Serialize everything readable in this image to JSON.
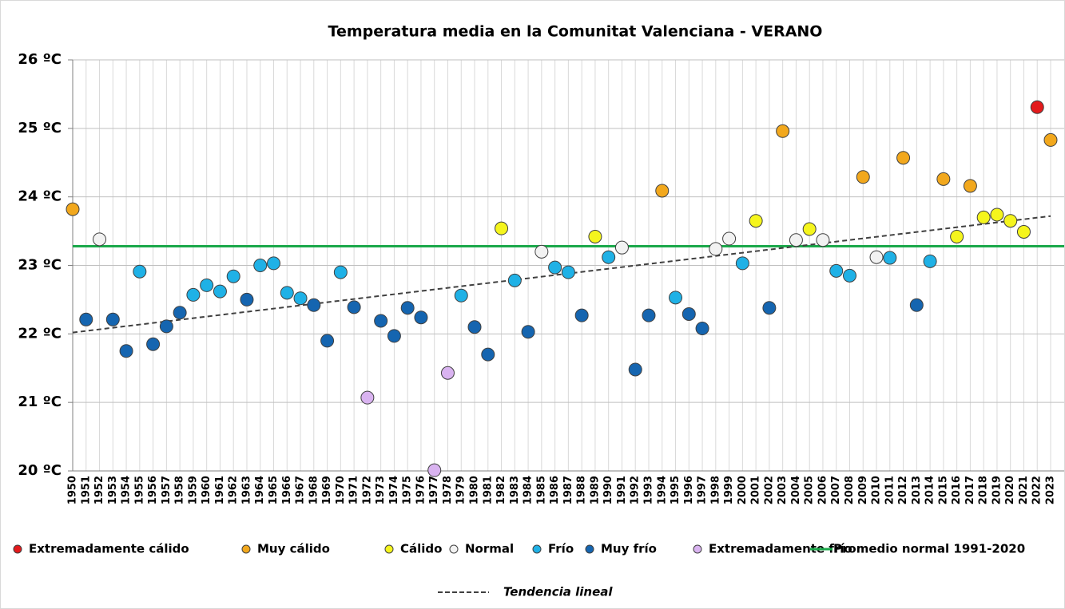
{
  "chart_data": {
    "type": "scatter",
    "title": "Temperatura media en la Comunitat Valenciana - VERANO",
    "xlim": [
      1950,
      2023
    ],
    "xticks": [
      1950,
      1951,
      1952,
      1953,
      1954,
      1955,
      1956,
      1957,
      1958,
      1959,
      1960,
      1961,
      1962,
      1963,
      1964,
      1965,
      1966,
      1967,
      1968,
      1969,
      1970,
      1971,
      1972,
      1973,
      1974,
      1975,
      1976,
      1977,
      1978,
      1979,
      1980,
      1981,
      1982,
      1983,
      1984,
      1985,
      1986,
      1987,
      1988,
      1989,
      1990,
      1991,
      1992,
      1993,
      1994,
      1995,
      1996,
      1997,
      1998,
      1999,
      2000,
      2001,
      2002,
      2003,
      2004,
      2005,
      2006,
      2007,
      2008,
      2009,
      2010,
      2011,
      2012,
      2013,
      2014,
      2015,
      2016,
      2017,
      2018,
      2019,
      2020,
      2021,
      2022,
      2023
    ],
    "ylim": [
      20,
      26
    ],
    "yticks": [
      {
        "value": 20,
        "label": "20 ºC"
      },
      {
        "value": 21,
        "label": "21 ºC"
      },
      {
        "value": 22,
        "label": "22 ºC"
      },
      {
        "value": 23,
        "label": "23 ºC"
      },
      {
        "value": 24,
        "label": "24 ºC"
      },
      {
        "value": 25,
        "label": "25 ºC"
      },
      {
        "value": 26,
        "label": "26 ºC"
      }
    ],
    "grid": true,
    "series": [
      {
        "name": "Extremadamente cálido",
        "color": "#e31a1c",
        "x": [
          2022
        ],
        "values": [
          25.31
        ]
      },
      {
        "name": "Muy cálido",
        "color": "#f2a81d",
        "x": [
          1950,
          1994,
          2003,
          2009,
          2012,
          2015,
          2017,
          2023
        ],
        "values": [
          23.82,
          24.09,
          24.96,
          24.29,
          24.57,
          24.26,
          24.16,
          24.83
        ]
      },
      {
        "name": "Cálido",
        "color": "#f5f51d",
        "x": [
          1982,
          1989,
          2001,
          2005,
          2016,
          2018,
          2019,
          2020,
          2021
        ],
        "values": [
          23.54,
          23.42,
          23.65,
          23.53,
          23.42,
          23.7,
          23.74,
          23.65,
          23.49
        ]
      },
      {
        "name": "Normal",
        "color": "#f2f2f2",
        "x": [
          1952,
          1985,
          1991,
          1998,
          1999,
          2004,
          2006,
          2010
        ],
        "values": [
          23.38,
          23.2,
          23.26,
          23.24,
          23.39,
          23.37,
          23.37,
          23.12
        ]
      },
      {
        "name": "Frío",
        "color": "#1fb1e6",
        "x": [
          1955,
          1959,
          1960,
          1961,
          1962,
          1964,
          1965,
          1966,
          1967,
          1970,
          1979,
          1983,
          1986,
          1987,
          1990,
          1995,
          2000,
          2007,
          2008,
          2011,
          2014
        ],
        "values": [
          22.91,
          22.57,
          22.71,
          22.62,
          22.84,
          23.0,
          23.03,
          22.6,
          22.52,
          22.9,
          22.56,
          22.78,
          22.97,
          22.9,
          23.12,
          22.53,
          23.03,
          22.92,
          22.85,
          23.11,
          23.06
        ]
      },
      {
        "name": "Muy frío",
        "color": "#1565b0",
        "x": [
          1951,
          1953,
          1954,
          1956,
          1957,
          1958,
          1963,
          1968,
          1969,
          1971,
          1973,
          1974,
          1975,
          1976,
          1980,
          1981,
          1984,
          1988,
          1992,
          1993,
          1996,
          1997,
          2002,
          2013
        ],
        "values": [
          22.21,
          22.21,
          21.75,
          21.85,
          22.11,
          22.31,
          22.5,
          22.42,
          21.9,
          22.39,
          22.19,
          21.97,
          22.38,
          22.24,
          22.1,
          21.7,
          22.03,
          22.27,
          21.48,
          22.27,
          22.29,
          22.08,
          22.38,
          22.42
        ]
      },
      {
        "name": "Extremadamente frío",
        "color": "#d9b3f0",
        "x": [
          1972,
          1977,
          1978
        ],
        "values": [
          21.07,
          20.01,
          21.43
        ]
      }
    ],
    "reference_line": {
      "name": "Promedio normal 1991-2020",
      "value": 23.28,
      "color": "#1aa84a"
    },
    "trend": {
      "name": "Tendencia lineal",
      "x": [
        1950,
        2023
      ],
      "values": [
        22.02,
        23.72
      ],
      "color": "#404040"
    }
  }
}
